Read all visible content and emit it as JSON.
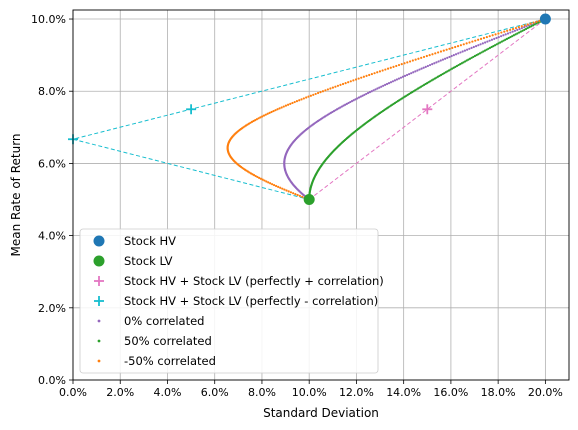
{
  "chart_data": {
    "type": "scatter",
    "title": "",
    "xlabel": "Standard Deviation",
    "ylabel": "Mean Rate of Return",
    "xlim": [
      0,
      0.21
    ],
    "ylim": [
      0,
      0.1025
    ],
    "x_ticks": [
      0,
      0.02,
      0.04,
      0.06,
      0.08,
      0.1,
      0.12,
      0.14,
      0.16,
      0.18,
      0.2
    ],
    "x_tick_labels": [
      "0.0%",
      "2.0%",
      "4.0%",
      "6.0%",
      "8.0%",
      "10.0%",
      "12.0%",
      "14.0%",
      "16.0%",
      "18.0%",
      "20.0%"
    ],
    "y_ticks": [
      0,
      0.02,
      0.04,
      0.06,
      0.08,
      0.1
    ],
    "y_tick_labels": [
      "0.0%",
      "2.0%",
      "4.0%",
      "6.0%",
      "8.0%",
      "10.0%"
    ],
    "grid": true,
    "legend_position": "lower-left",
    "assets": {
      "stock_hv": {
        "std": 0.2,
        "mean": 0.1
      },
      "stock_lv": {
        "std": 0.1,
        "mean": 0.05
      }
    },
    "series": [
      {
        "name": "Stock HV",
        "kind": "marker-circle",
        "color": "#1f77b4",
        "points": [
          [
            0.2,
            0.1
          ]
        ]
      },
      {
        "name": "Stock LV",
        "kind": "marker-circle",
        "color": "#2ca02c",
        "points": [
          [
            0.1,
            0.05
          ]
        ]
      },
      {
        "name": "Stock HV + Stock LV (perfectly + correlation)",
        "kind": "plus-line",
        "color": "#e377c2",
        "points": [
          [
            0.1,
            0.05
          ],
          [
            0.15,
            0.075
          ],
          [
            0.2,
            0.1
          ]
        ]
      },
      {
        "name": "Stock HV + Stock LV (perfectly - correlation)",
        "kind": "plus-line",
        "color": "#17becf",
        "points": [
          [
            0.2,
            0.1
          ],
          [
            0.0,
            0.0667
          ],
          [
            0.1,
            0.05
          ],
          [
            0.05,
            0.075
          ]
        ]
      },
      {
        "name": "0% correlated",
        "kind": "dots",
        "color": "#9467bd",
        "correlation": 0.0
      },
      {
        "name": "50% correlated",
        "kind": "dots",
        "color": "#2ca02c",
        "correlation": 0.5
      },
      {
        "name": "-50% correlated",
        "kind": "dots",
        "color": "#ff7f0e",
        "correlation": -0.5
      }
    ]
  }
}
